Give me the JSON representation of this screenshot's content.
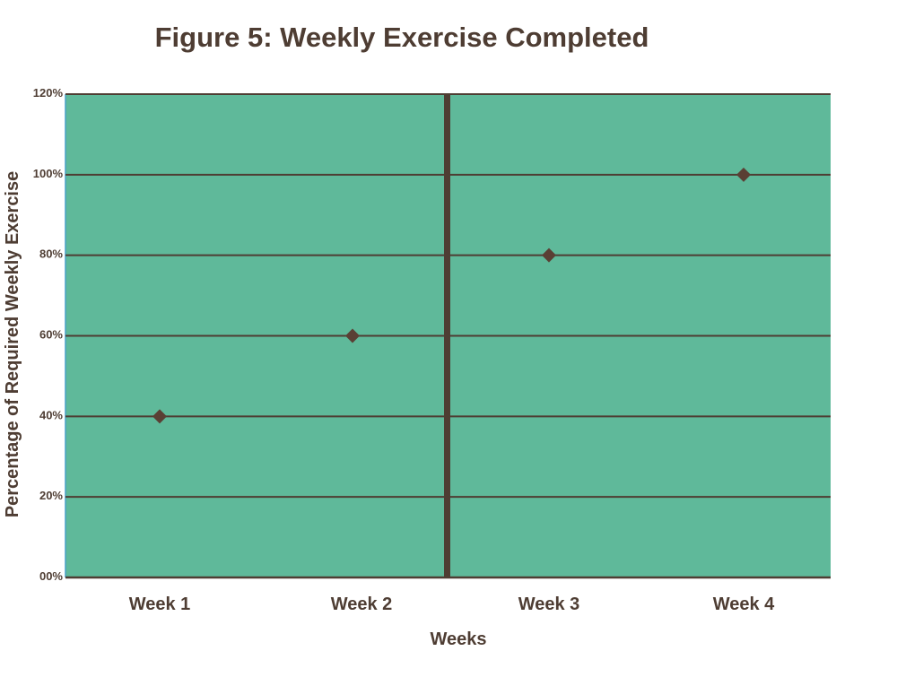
{
  "chart_data": {
    "type": "scatter",
    "title": "Figure 5: Weekly Exercise Completed",
    "xlabel": "Weeks",
    "ylabel": "Percentage of Required Weekly Exercise",
    "categories": [
      "Week 1",
      "Week 2",
      "Week 3",
      "Week 4"
    ],
    "values": [
      40,
      60,
      80,
      100
    ],
    "y_ticks": [
      "00%",
      "20%",
      "40%",
      "60%",
      "80%",
      "100%",
      "120%"
    ],
    "y_tick_values": [
      0,
      20,
      40,
      60,
      80,
      100,
      120
    ],
    "ylim": [
      0,
      120
    ],
    "phase_divider_after_category": 2,
    "grid": true,
    "marker": "diamond",
    "colors": {
      "plot_background": "#5fb99a",
      "gridline": "#4e3d33",
      "marker": "#5a3f34",
      "text": "#4e3d33",
      "plot_left_edge": "#48a0c8"
    }
  }
}
